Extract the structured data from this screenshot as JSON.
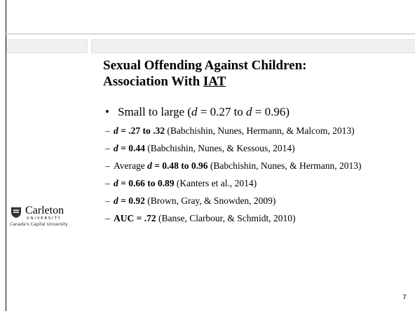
{
  "slide": {
    "title": [
      "Sexual Offending Against Children:",
      "Association With ",
      "IAT"
    ],
    "bullet_marker": "•",
    "sub_marker": "–",
    "bullet": [
      "Small to large (",
      "d",
      " = 0.27 to ",
      "d",
      " = 0.96)"
    ],
    "sub_bullets": [
      [
        "d",
        " = .27 to .32",
        " (Babchishin, Nunes, Hermann, & Malcom, 2013)"
      ],
      [
        "d",
        " = 0.44",
        " (Babchishin, Nunes, & Kessous, 2014)"
      ],
      [
        "Average ",
        "d",
        " = 0.48 to 0.96",
        " (Babchishin, Nunes, & Hermann, 2013)"
      ],
      [
        "d",
        " = 0.66 to 0.89",
        " (Kanters et al., 2014)"
      ],
      [
        "d",
        " = 0.92",
        " (Brown, Gray, & Snowden, 2009)"
      ],
      [
        "AUC = .72",
        " (Banse, Clarbour, & Schmidt, 2010)"
      ]
    ],
    "logo": {
      "name": "Carleton",
      "sub": "UNIVERSITY",
      "tagline": "Canada's Capital University"
    },
    "page_number": "7"
  }
}
